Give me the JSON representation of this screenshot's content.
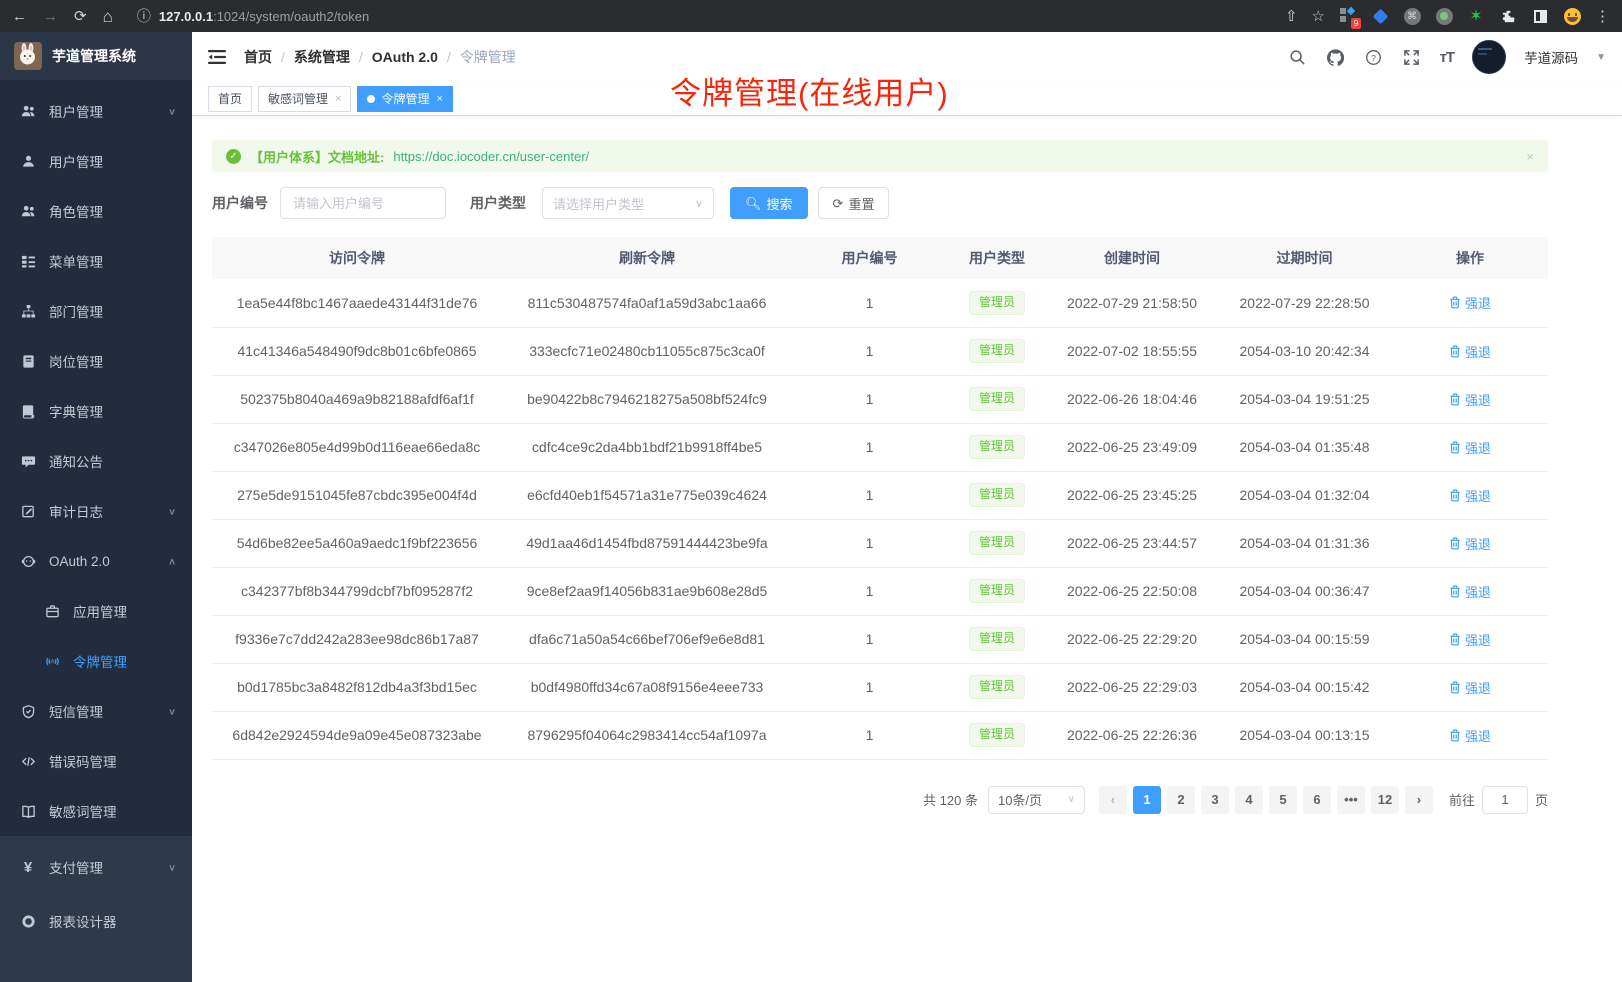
{
  "browser": {
    "url_host": "127.0.0.1",
    "url_path": ":1024/system/oauth2/token",
    "extension_badge": "9"
  },
  "sidebar": {
    "app_title": "芋道管理系统",
    "items": [
      {
        "label": "租户管理"
      },
      {
        "label": "用户管理"
      },
      {
        "label": "角色管理"
      },
      {
        "label": "菜单管理"
      },
      {
        "label": "部门管理"
      },
      {
        "label": "岗位管理"
      },
      {
        "label": "字典管理"
      },
      {
        "label": "通知公告"
      },
      {
        "label": "审计日志"
      },
      {
        "label": "OAuth 2.0"
      },
      {
        "label": "应用管理"
      },
      {
        "label": "令牌管理"
      },
      {
        "label": "短信管理"
      },
      {
        "label": "错误码管理"
      },
      {
        "label": "敏感词管理"
      },
      {
        "label": "支付管理"
      },
      {
        "label": "报表设计器"
      }
    ]
  },
  "header": {
    "breadcrumb": [
      "首页",
      "系统管理",
      "OAuth 2.0",
      "令牌管理"
    ],
    "separator": "/",
    "user_name": "芋道源码"
  },
  "tabs": [
    {
      "label": "首页"
    },
    {
      "label": "敏感词管理"
    },
    {
      "label": "令牌管理"
    }
  ],
  "annotation": "令牌管理(在线用户)",
  "alert": {
    "text": "【用户体系】文档地址:",
    "link": "https://doc.iocoder.cn/user-center/"
  },
  "filters": {
    "user_id_label": "用户编号",
    "user_id_placeholder": "请输入用户编号",
    "user_type_label": "用户类型",
    "user_type_placeholder": "请选择用户类型",
    "search_label": "搜索",
    "reset_label": "重置"
  },
  "table": {
    "columns": [
      "访问令牌",
      "刷新令牌",
      "用户编号",
      "用户类型",
      "创建时间",
      "过期时间",
      "操作"
    ],
    "rows": [
      {
        "access": "1ea5e44f8bc1467aaede43144f31de76",
        "refresh": "811c530487574fa0af1a59d3abc1aa66",
        "user_id": "1",
        "user_type": "管理员",
        "created": "2022-07-29 21:58:50",
        "expires": "2022-07-29 22:28:50",
        "action": "强退"
      },
      {
        "access": "41c41346a548490f9dc8b01c6bfe0865",
        "refresh": "333ecfc71e02480cb11055c875c3ca0f",
        "user_id": "1",
        "user_type": "管理员",
        "created": "2022-07-02 18:55:55",
        "expires": "2054-03-10 20:42:34",
        "action": "强退"
      },
      {
        "access": "502375b8040a469a9b82188afdf6af1f",
        "refresh": "be90422b8c7946218275a508bf524fc9",
        "user_id": "1",
        "user_type": "管理员",
        "created": "2022-06-26 18:04:46",
        "expires": "2054-03-04 19:51:25",
        "action": "强退"
      },
      {
        "access": "c347026e805e4d99b0d116eae66eda8c",
        "refresh": "cdfc4ce9c2da4bb1bdf21b9918ff4be5",
        "user_id": "1",
        "user_type": "管理员",
        "created": "2022-06-25 23:49:09",
        "expires": "2054-03-04 01:35:48",
        "action": "强退"
      },
      {
        "access": "275e5de9151045fe87cbdc395e004f4d",
        "refresh": "e6cfd40eb1f54571a31e775e039c4624",
        "user_id": "1",
        "user_type": "管理员",
        "created": "2022-06-25 23:45:25",
        "expires": "2054-03-04 01:32:04",
        "action": "强退"
      },
      {
        "access": "54d6be82ee5a460a9aedc1f9bf223656",
        "refresh": "49d1aa46d1454fbd87591444423be9fa",
        "user_id": "1",
        "user_type": "管理员",
        "created": "2022-06-25 23:44:57",
        "expires": "2054-03-04 01:31:36",
        "action": "强退"
      },
      {
        "access": "c342377bf8b344799dcbf7bf095287f2",
        "refresh": "9ce8ef2aa9f14056b831ae9b608e28d5",
        "user_id": "1",
        "user_type": "管理员",
        "created": "2022-06-25 22:50:08",
        "expires": "2054-03-04 00:36:47",
        "action": "强退"
      },
      {
        "access": "f9336e7c7dd242a283ee98dc86b17a87",
        "refresh": "dfa6c71a50a54c66bef706ef9e6e8d81",
        "user_id": "1",
        "user_type": "管理员",
        "created": "2022-06-25 22:29:20",
        "expires": "2054-03-04 00:15:59",
        "action": "强退"
      },
      {
        "access": "b0d1785bc3a8482f812db4a3f3bd15ec",
        "refresh": "b0df4980ffd34c67a08f9156e4eee733",
        "user_id": "1",
        "user_type": "管理员",
        "created": "2022-06-25 22:29:03",
        "expires": "2054-03-04 00:15:42",
        "action": "强退"
      },
      {
        "access": "6d842e2924594de9a09e45e087323abe",
        "refresh": "8796295f04064c2983414cc54af1097a",
        "user_id": "1",
        "user_type": "管理员",
        "created": "2022-06-25 22:26:36",
        "expires": "2054-03-04 00:13:15",
        "action": "强退"
      }
    ]
  },
  "pagination": {
    "total": "共 120 条",
    "page_size": "10条/页",
    "pages": [
      "1",
      "2",
      "3",
      "4",
      "5",
      "6",
      "•••",
      "12"
    ],
    "active_page": "1",
    "goto_label": "前往",
    "goto_value": "1",
    "goto_unit": "页"
  },
  "colors": {
    "accent": "#409eff",
    "success": "#67c23a",
    "annotation_red": "#f7260b",
    "link_green": "#3eaf7c"
  }
}
